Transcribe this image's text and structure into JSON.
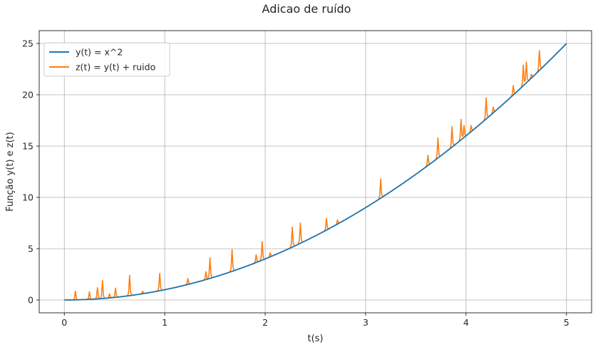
{
  "chart_data": {
    "type": "line",
    "title": "Adicao de ruído",
    "xlabel": "t(s)",
    "ylabel": "Função y(t) e z(t)",
    "xlim": [
      -0.25,
      5.25
    ],
    "ylim": [
      -1.25,
      26.25
    ],
    "xticks": [
      0,
      1,
      2,
      3,
      4,
      5
    ],
    "yticks": [
      0,
      5,
      10,
      15,
      20,
      25
    ],
    "grid": true,
    "legend_position": "upper-left",
    "series": [
      {
        "name": "y(t) = x^2",
        "color": "#1f77b4",
        "function": "t^2",
        "t_range": [
          0,
          5
        ]
      },
      {
        "name": "z(t) = y(t) + ruido",
        "color": "#ff7f0e",
        "function": "t^2 + noise",
        "t_range": [
          0,
          5
        ],
        "noise_spikes": [
          {
            "t": 0.11,
            "v": 0.85
          },
          {
            "t": 0.25,
            "v": 0.8
          },
          {
            "t": 0.33,
            "v": 1.2
          },
          {
            "t": 0.38,
            "v": 1.9
          },
          {
            "t": 0.45,
            "v": 0.6
          },
          {
            "t": 0.51,
            "v": 1.15
          },
          {
            "t": 0.65,
            "v": 2.4
          },
          {
            "t": 0.78,
            "v": 0.85
          },
          {
            "t": 0.95,
            "v": 2.6
          },
          {
            "t": 1.23,
            "v": 2.1
          },
          {
            "t": 1.41,
            "v": 2.75
          },
          {
            "t": 1.45,
            "v": 4.1
          },
          {
            "t": 1.67,
            "v": 4.9
          },
          {
            "t": 1.91,
            "v": 4.4
          },
          {
            "t": 1.97,
            "v": 5.7
          },
          {
            "t": 2.05,
            "v": 4.6
          },
          {
            "t": 2.27,
            "v": 7.1
          },
          {
            "t": 2.35,
            "v": 7.5
          },
          {
            "t": 2.61,
            "v": 7.95
          },
          {
            "t": 2.72,
            "v": 7.8
          },
          {
            "t": 3.15,
            "v": 11.8
          },
          {
            "t": 3.62,
            "v": 14.1
          },
          {
            "t": 3.72,
            "v": 15.8
          },
          {
            "t": 3.86,
            "v": 16.9
          },
          {
            "t": 3.95,
            "v": 17.6
          },
          {
            "t": 3.98,
            "v": 17.0
          },
          {
            "t": 4.05,
            "v": 17.0
          },
          {
            "t": 4.2,
            "v": 19.7
          },
          {
            "t": 4.27,
            "v": 18.8
          },
          {
            "t": 4.47,
            "v": 20.9
          },
          {
            "t": 4.57,
            "v": 22.9
          },
          {
            "t": 4.6,
            "v": 23.2
          },
          {
            "t": 4.65,
            "v": 22.0
          },
          {
            "t": 4.73,
            "v": 24.3
          }
        ]
      }
    ]
  }
}
